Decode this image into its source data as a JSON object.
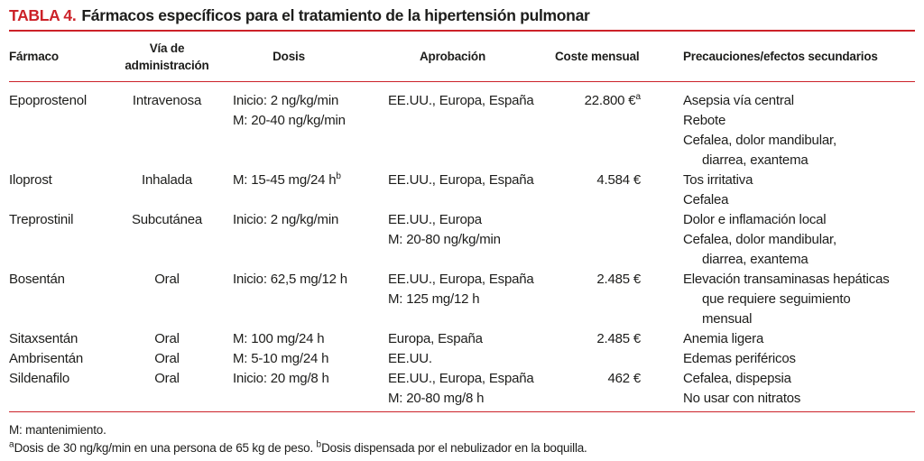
{
  "colors": {
    "accent_red": "#cc2229",
    "text": "#1d1d1b"
  },
  "table": {
    "label": "TABLA 4.",
    "title": "Fármacos específicos para el tratamiento de la hipertensión pulmonar",
    "columns": {
      "farmaco": "Fármaco",
      "via": "Vía de administración",
      "dosis": "Dosis",
      "aprobacion": "Aprobación",
      "coste": "Coste mensual",
      "precauciones": "Precauciones/efectos secundarios"
    },
    "rows": [
      {
        "farmaco": "Epoprostenol",
        "via": "Intravenosa",
        "dosis": [
          "Inicio: 2 ng/kg/min",
          "M: 20-40 ng/kg/min"
        ],
        "aprobacion": [
          "EE.UU., Europa, España"
        ],
        "coste": "22.800 €",
        "coste_sup": "a",
        "precauciones": [
          "Asepsia vía central",
          "Rebote",
          "Cefalea, dolor mandibular,",
          "diarrea, exantema"
        ]
      },
      {
        "farmaco": "Iloprost",
        "via": "Inhalada",
        "dosis": [
          "M: 15-45 mg/24 h"
        ],
        "dosis_sup": "b",
        "aprobacion": [
          "EE.UU., Europa, España"
        ],
        "coste": "4.584 €",
        "precauciones": [
          "Tos irritativa",
          "Cefalea"
        ]
      },
      {
        "farmaco": "Treprostinil",
        "via": "Subcutánea",
        "dosis": [
          "Inicio: 2 ng/kg/min"
        ],
        "aprobacion": [
          "EE.UU., Europa",
          "M: 20-80 ng/kg/min"
        ],
        "coste": "",
        "precauciones": [
          "Dolor e inflamación local",
          "Cefalea, dolor mandibular,",
          "diarrea, exantema"
        ]
      },
      {
        "farmaco": "Bosentán",
        "via": "Oral",
        "dosis": [
          "Inicio: 62,5 mg/12 h"
        ],
        "aprobacion": [
          "EE.UU., Europa, España",
          "M: 125 mg/12 h"
        ],
        "coste": "2.485 €",
        "precauciones": [
          "Elevación transaminasas hepáticas",
          "que requiere seguimiento",
          "mensual"
        ]
      },
      {
        "farmaco": "Sitaxsentán",
        "via": "Oral",
        "dosis": [
          "M: 100 mg/24 h"
        ],
        "aprobacion": [
          "Europa, España"
        ],
        "coste": "2.485 €",
        "precauciones": [
          "Anemia ligera"
        ]
      },
      {
        "farmaco": "Ambrisentán",
        "via": "Oral",
        "dosis": [
          "M: 5-10 mg/24 h"
        ],
        "aprobacion": [
          "EE.UU."
        ],
        "coste": "",
        "precauciones": [
          "Edemas periféricos"
        ]
      },
      {
        "farmaco": "Sildenafilo",
        "via": "Oral",
        "dosis": [
          "Inicio: 20 mg/8 h"
        ],
        "aprobacion": [
          "EE.UU., Europa, España",
          "M: 20-80 mg/8 h"
        ],
        "coste": "462 €",
        "precauciones": [
          "Cefalea, dispepsia",
          "No usar con nitratos"
        ]
      }
    ],
    "footnotes": {
      "abbrev": "M: mantenimiento.",
      "sup_a": "a",
      "note_a": "Dosis de 30 ng/kg/min en una persona de 65 kg de peso. ",
      "sup_b": "b",
      "note_b": "Dosis dispensada por el nebulizador en la boquilla."
    }
  }
}
